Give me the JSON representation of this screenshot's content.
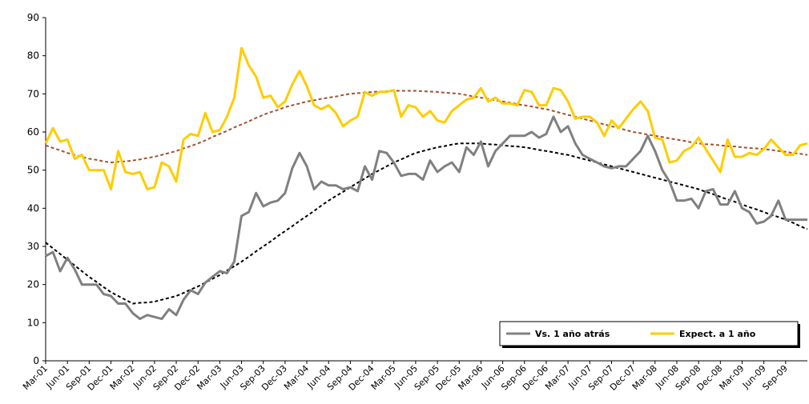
{
  "chart_data": {
    "type": "line",
    "categories": [
      "Mar-01",
      null,
      null,
      "Jun-01",
      null,
      null,
      "Sep-01",
      null,
      null,
      "Dec-01",
      null,
      null,
      "Mar-02",
      null,
      null,
      "Jun-02",
      null,
      null,
      "Sep-02",
      null,
      null,
      "Dec-02",
      null,
      null,
      "Mar-03",
      null,
      null,
      "Jun-03",
      null,
      null,
      "Sep-03",
      null,
      null,
      "Dec-03",
      null,
      null,
      "Mar-04",
      null,
      null,
      "Jun-04",
      null,
      null,
      "Sep-04",
      null,
      null,
      "Dec-04",
      null,
      null,
      "Mar-05",
      null,
      null,
      "Jun-05",
      null,
      null,
      "Sep-05",
      null,
      null,
      "Dec-05",
      null,
      null,
      "Mar-06",
      null,
      null,
      "Jun-06",
      null,
      null,
      "Sep-06",
      null,
      null,
      "Dec-06",
      null,
      null,
      "Mar-07",
      null,
      null,
      "Jun-07",
      null,
      null,
      "Sep-07",
      null,
      null,
      "Dec-07",
      null,
      null,
      "Mar-08",
      null,
      null,
      "Jun-08",
      null,
      null,
      "Sep-08",
      null,
      null,
      "Dec-08",
      null,
      null,
      "Mar-09",
      null,
      null,
      "Jun-09",
      null,
      null,
      "Sep-09",
      null,
      null,
      null
    ],
    "series": [
      {
        "name": "Vs. 1 año atrás",
        "color": "#808080",
        "values": [
          27.5,
          28.5,
          23.5,
          27,
          24,
          20,
          20,
          20,
          17.5,
          17,
          15,
          15,
          12.5,
          11,
          12,
          11.5,
          11,
          13.5,
          12,
          16,
          18.5,
          17.5,
          20.5,
          22,
          23.5,
          23,
          26,
          38,
          39,
          44,
          40.5,
          41.5,
          42,
          44,
          50.5,
          54.5,
          51,
          45,
          47,
          46,
          46,
          45,
          45.5,
          44.5,
          51,
          47.5,
          55,
          54.5,
          52,
          48.5,
          49,
          49,
          47.5,
          52.5,
          49.5,
          51,
          52,
          49.5,
          56,
          54,
          57.5,
          51,
          55,
          57,
          59,
          59,
          59,
          60,
          58.5,
          59.5,
          64,
          60,
          61.5,
          57,
          54,
          53,
          52,
          51,
          50.5,
          51,
          51,
          53,
          55,
          59,
          55,
          50,
          47,
          42,
          42,
          42.5,
          40,
          44.5,
          45,
          41,
          41,
          44.5,
          40,
          39,
          36,
          36.5,
          38,
          42,
          37,
          37,
          37,
          37
        ]
      },
      {
        "name": "Expect. a 1 año",
        "color": "#ffcc00",
        "values": [
          57,
          61,
          57.5,
          58,
          53,
          54,
          50,
          50,
          50,
          45,
          55,
          49.5,
          49,
          49.5,
          45,
          45.5,
          52,
          51,
          47,
          58,
          59.5,
          59,
          65,
          60,
          60.5,
          64,
          69,
          82,
          77.5,
          74.5,
          69,
          69.5,
          66.5,
          68,
          72.5,
          76,
          72,
          67,
          66,
          67,
          65,
          61.5,
          63,
          64,
          70.5,
          69.5,
          70.5,
          70.5,
          71,
          64,
          67,
          66.5,
          64,
          65.5,
          63,
          62.5,
          65.5,
          67,
          68.5,
          69,
          71.5,
          68,
          69,
          67.5,
          67.5,
          67,
          71,
          70.5,
          67,
          67,
          71.5,
          71,
          68,
          63.5,
          64,
          64,
          62.5,
          59,
          63,
          61,
          63.5,
          66,
          68,
          65.5,
          58.5,
          58,
          52,
          52.5,
          55,
          56,
          58.5,
          55.5,
          52.5,
          49.5,
          58,
          53.5,
          53.5,
          54.5,
          54,
          55.5,
          58,
          56,
          54,
          54,
          56.5,
          57
        ]
      },
      {
        "color": "#000000",
        "dash": true,
        "values": [
          31,
          29.5,
          28,
          26.5,
          25,
          23.5,
          22,
          20.7,
          19.3,
          18,
          17,
          16,
          15,
          15.2,
          15.3,
          15.5,
          16,
          16.5,
          17,
          17.8,
          18.7,
          19.5,
          20.5,
          21.5,
          22.5,
          23.7,
          24.8,
          26,
          27.3,
          28.7,
          30,
          31.3,
          32.7,
          34,
          35.3,
          36.7,
          38,
          39.3,
          40.7,
          42,
          43.2,
          44.3,
          45.5,
          46.7,
          47.8,
          49,
          50,
          51,
          52,
          52.8,
          53.7,
          54.5,
          55,
          55.5,
          56,
          56.3,
          56.7,
          57,
          57,
          57,
          57,
          56.8,
          56.7,
          56.5,
          56.3,
          56.2,
          56,
          55.7,
          55.3,
          55,
          54.7,
          54.3,
          54,
          53.5,
          53,
          52.5,
          52,
          51.5,
          51,
          50.5,
          50,
          49.5,
          49,
          48.5,
          48,
          47.5,
          47,
          46.5,
          46,
          45.5,
          45,
          44.3,
          43.7,
          43,
          42.3,
          41.7,
          41,
          40.3,
          39.7,
          39,
          38.3,
          37.7,
          37,
          36.2,
          35.3,
          34.5
        ]
      },
      {
        "color": "#a0522d",
        "dash": true,
        "values": [
          56.5,
          55.8,
          55.2,
          54.5,
          54,
          53.5,
          53,
          52.7,
          52.3,
          52,
          52.2,
          52.3,
          52.5,
          52.8,
          53.2,
          53.5,
          54,
          54.5,
          55,
          55.7,
          56.3,
          57,
          57.8,
          58.7,
          59.5,
          60.3,
          61.2,
          62,
          62.8,
          63.7,
          64.5,
          65.2,
          65.8,
          66.5,
          67,
          67.5,
          68,
          68.3,
          68.7,
          69,
          69.3,
          69.7,
          70,
          70.2,
          70.3,
          70.5,
          70.6,
          70.7,
          70.8,
          70.8,
          70.8,
          70.8,
          70.7,
          70.6,
          70.5,
          70.3,
          70.2,
          70,
          69.7,
          69.3,
          69,
          68.7,
          68.3,
          68,
          67.7,
          67.3,
          67,
          66.7,
          66.3,
          66,
          65.5,
          65,
          64.5,
          64,
          63.5,
          63,
          62.5,
          62,
          61.5,
          61,
          60.5,
          60,
          59.7,
          59.3,
          59,
          58.7,
          58.3,
          58,
          57.7,
          57.3,
          57,
          56.8,
          56.7,
          56.5,
          56.3,
          56.2,
          56,
          55.8,
          55.7,
          55.5,
          55.3,
          55,
          54.8,
          54.5,
          54.3,
          54
        ]
      }
    ],
    "ylim": [
      0,
      90
    ],
    "yticks": [
      0,
      10,
      20,
      30,
      40,
      50,
      60,
      70,
      80,
      90
    ],
    "grid": false,
    "legend": "lower right"
  }
}
